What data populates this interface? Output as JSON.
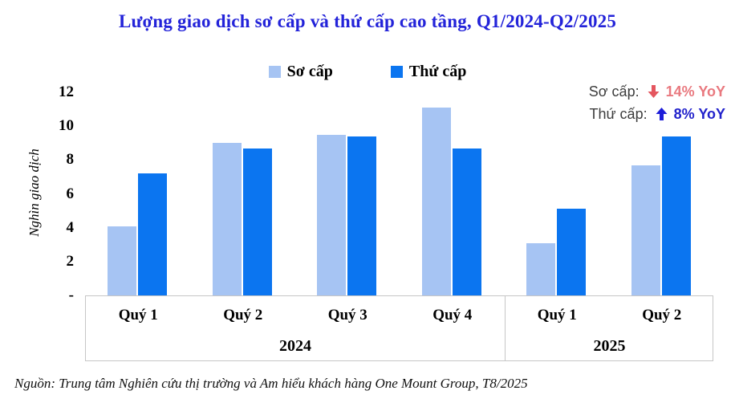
{
  "title": "Lượng giao dịch sơ cấp và thứ cấp cao tầng, Q1/2024-Q2/2025",
  "source": "Nguồn: Trung tâm Nghiên cứu thị trường và Am hiểu khách hàng One Mount Group, T8/2025",
  "annotation": {
    "primary": {
      "label": "Sơ cấp:",
      "value": "14% YoY",
      "direction": "down"
    },
    "secondary": {
      "label": "Thứ cấp:",
      "value": "8% YoY",
      "direction": "up"
    }
  },
  "colors": {
    "title": "#2323D9",
    "bar_primary": "#A6C4F3",
    "bar_secondary": "#0B75F0",
    "yoy_down_arrow": "#E4565F",
    "yoy_down_text": "#E9797F",
    "yoy_up_arrow": "#1D1DD8",
    "yoy_up_text": "#2222CC",
    "axis_box_border": "#C6C6C6"
  },
  "chart_data": {
    "type": "bar",
    "title": "Lượng giao dịch sơ cấp và thứ cấp cao tầng, Q1/2024-Q2/2025",
    "categories": [
      "Quý 1",
      "Quý 2",
      "Quý 3",
      "Quý 4",
      "Quý 1",
      "Quý 2"
    ],
    "category_groups": [
      {
        "label": "2024",
        "start": 0,
        "end": 4
      },
      {
        "label": "2025",
        "start": 4,
        "end": 6
      }
    ],
    "series": [
      {
        "name": "Sơ cấp",
        "color": "#A6C4F3",
        "values": [
          4.1,
          9.0,
          9.5,
          11.1,
          3.1,
          7.7
        ]
      },
      {
        "name": "Thứ cấp",
        "color": "#0B75F0",
        "values": [
          7.2,
          8.7,
          9.4,
          8.7,
          5.1,
          9.4
        ]
      }
    ],
    "xlabel": "",
    "ylabel": "Nghìn giao dịch",
    "ylim": [
      0,
      12
    ],
    "yticks": [
      0,
      2,
      4,
      6,
      8,
      10,
      12
    ],
    "ytick_labels": [
      "-",
      "2",
      "4",
      "6",
      "8",
      "10",
      "12"
    ],
    "grid": false,
    "legend_position": "top"
  }
}
